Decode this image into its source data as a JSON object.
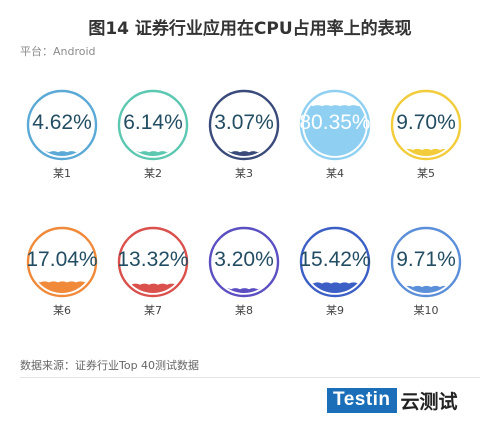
{
  "header": {
    "title": "图14 证券行业应用在CPU占用率上的表现",
    "platform": "平台：Android"
  },
  "footer": {
    "source": "数据来源：证券行业Top 40测试数据",
    "brand_name": "Testin",
    "brand_cn": "云测试",
    "brand_color": "#1b6fb8"
  },
  "chart_data": {
    "type": "gauge",
    "title": "图14 证券行业应用在CPU占用率上的表现",
    "unit": "%",
    "items": [
      {
        "name": "某1",
        "value": 4.62,
        "label": "4.62%",
        "color": "#5aa9d6"
      },
      {
        "name": "某2",
        "value": 6.14,
        "label": "6.14%",
        "color": "#5cc8b1"
      },
      {
        "name": "某3",
        "value": 3.07,
        "label": "3.07%",
        "color": "#3a4a7a"
      },
      {
        "name": "某4",
        "value": 80.35,
        "label": "80.35%",
        "color": "#8fd0f2"
      },
      {
        "name": "某5",
        "value": 9.7,
        "label": "9.70%",
        "color": "#f2cc3a"
      },
      {
        "name": "某6",
        "value": 17.04,
        "label": "17.04%",
        "color": "#f08a3a"
      },
      {
        "name": "某7",
        "value": 13.32,
        "label": "13.32%",
        "color": "#d9504c"
      },
      {
        "name": "某8",
        "value": 3.2,
        "label": "3.20%",
        "color": "#5b4fc2"
      },
      {
        "name": "某9",
        "value": 15.42,
        "label": "15.42%",
        "color": "#3b5fc4"
      },
      {
        "name": "某10",
        "value": 9.71,
        "label": "9.71%",
        "color": "#5c8fd9"
      }
    ]
  }
}
